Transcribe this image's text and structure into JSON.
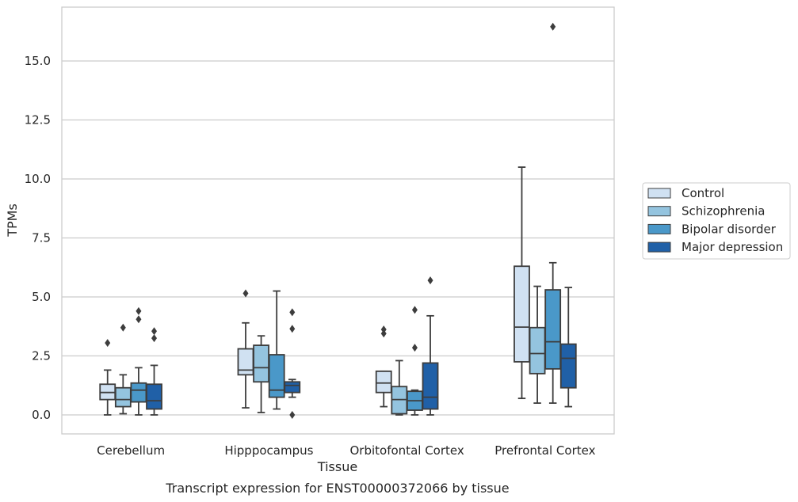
{
  "caption": "Transcript expression for ENST00000372066 by tissue",
  "chart_data": {
    "type": "box",
    "title": "",
    "xlabel": "Tissue",
    "ylabel": "TPMs",
    "categories": [
      "Cerebellum",
      "Hipppocampus",
      "Orbitofontal Cortex",
      "Prefrontal Cortex"
    ],
    "ylim": [
      -0.8,
      17.6
    ],
    "yticks": [
      "0.0",
      "2.5",
      "5.0",
      "7.5",
      "10.0",
      "12.5",
      "15.0"
    ],
    "grid": "horizontal",
    "legend_position": "right",
    "series": [
      {
        "name": "Control",
        "color": "#d0e1f2",
        "boxes": [
          {
            "whisker_low": 0.0,
            "q1": 0.65,
            "median": 0.95,
            "q3": 1.3,
            "whisker_high": 1.9,
            "outliers": [
              3.05
            ]
          },
          {
            "whisker_low": 0.3,
            "q1": 1.7,
            "median": 1.9,
            "q3": 2.8,
            "whisker_high": 3.9,
            "outliers": [
              5.15
            ]
          },
          {
            "whisker_low": 0.35,
            "q1": 0.95,
            "median": 1.35,
            "q3": 1.85,
            "whisker_high": 1.85,
            "outliers": [
              3.45,
              3.62
            ]
          },
          {
            "whisker_low": 0.7,
            "q1": 2.25,
            "median": 3.72,
            "q3": 6.3,
            "whisker_high": 10.5,
            "outliers": []
          }
        ]
      },
      {
        "name": "Schizophrenia",
        "color": "#94c4df",
        "boxes": [
          {
            "whisker_low": 0.05,
            "q1": 0.35,
            "median": 0.65,
            "q3": 1.15,
            "whisker_high": 1.7,
            "outliers": [
              3.7
            ]
          },
          {
            "whisker_low": 0.1,
            "q1": 1.4,
            "median": 2.0,
            "q3": 2.95,
            "whisker_high": 3.35,
            "outliers": []
          },
          {
            "whisker_low": 0.0,
            "q1": 0.05,
            "median": 0.65,
            "q3": 1.2,
            "whisker_high": 2.3,
            "outliers": []
          },
          {
            "whisker_low": 0.5,
            "q1": 1.75,
            "median": 2.6,
            "q3": 3.7,
            "whisker_high": 5.45,
            "outliers": []
          }
        ]
      },
      {
        "name": "Bipolar disorder",
        "color": "#4a98c9",
        "boxes": [
          {
            "whisker_low": 0.0,
            "q1": 0.55,
            "median": 1.05,
            "q3": 1.35,
            "whisker_high": 2.0,
            "outliers": [
              4.05,
              4.4
            ]
          },
          {
            "whisker_low": 0.25,
            "q1": 0.75,
            "median": 1.05,
            "q3": 2.55,
            "whisker_high": 5.25,
            "outliers": []
          },
          {
            "whisker_low": 0.0,
            "q1": 0.2,
            "median": 0.6,
            "q3": 1.0,
            "whisker_high": 1.05,
            "outliers": [
              2.85,
              4.45
            ]
          },
          {
            "whisker_low": 0.5,
            "q1": 1.95,
            "median": 3.1,
            "q3": 5.3,
            "whisker_high": 6.45,
            "outliers": [
              16.45
            ]
          }
        ]
      },
      {
        "name": "Major depression",
        "color": "#2060a7",
        "boxes": [
          {
            "whisker_low": 0.0,
            "q1": 0.25,
            "median": 0.6,
            "q3": 1.3,
            "whisker_high": 2.1,
            "outliers": [
              3.25,
              3.55
            ]
          },
          {
            "whisker_low": 0.75,
            "q1": 0.95,
            "median": 1.25,
            "q3": 1.4,
            "whisker_high": 1.5,
            "outliers": [
              0.0,
              3.65,
              4.35
            ]
          },
          {
            "whisker_low": 0.0,
            "q1": 0.25,
            "median": 0.75,
            "q3": 2.2,
            "whisker_high": 4.2,
            "outliers": [
              5.7
            ]
          },
          {
            "whisker_low": 0.35,
            "q1": 1.15,
            "median": 2.4,
            "q3": 3.0,
            "whisker_high": 5.4,
            "outliers": []
          }
        ]
      }
    ]
  }
}
